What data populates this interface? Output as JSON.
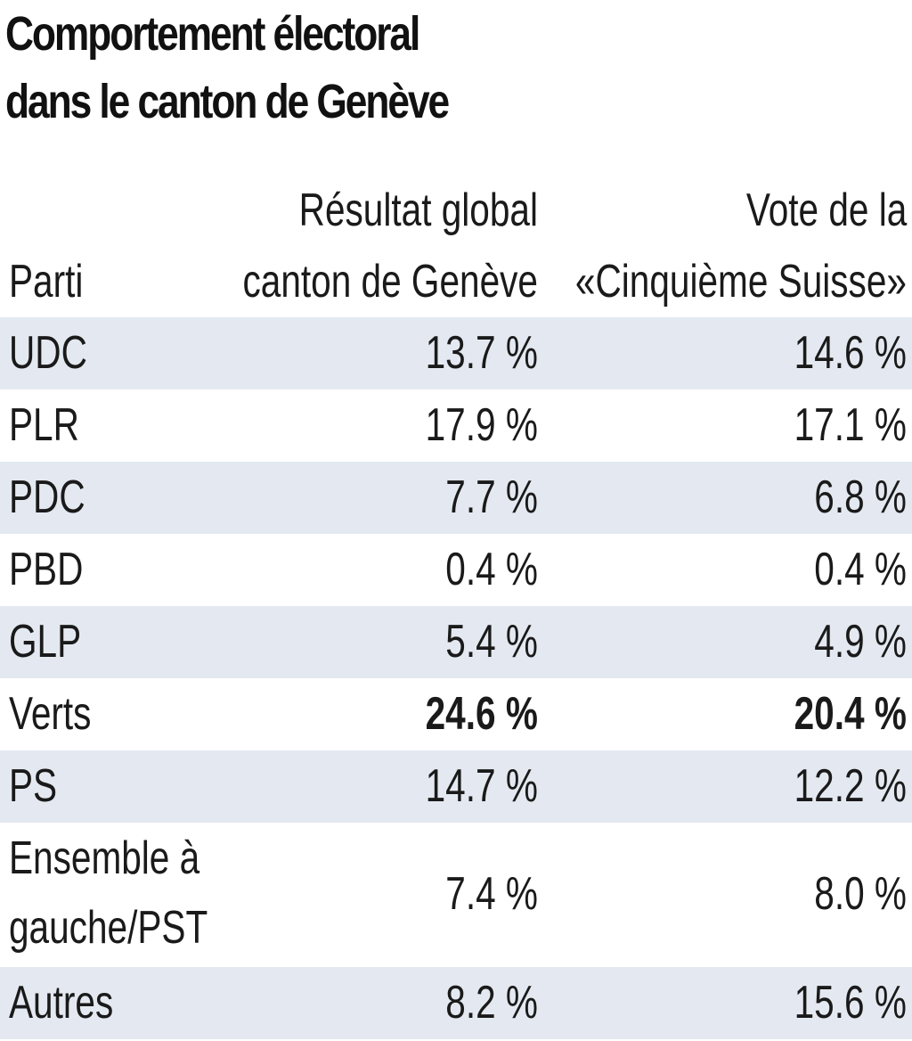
{
  "title": {
    "line1": "Comportement électoral",
    "line2": "dans le canton de Genève"
  },
  "chart_data": {
    "type": "table",
    "columns": {
      "party": "Parti",
      "geneva_line1": "Résultat global",
      "geneva_line2": "canton de Genève",
      "abroad_line1": "Vote de la",
      "abroad_line2": "«Cinquième Suisse»"
    },
    "rows": [
      {
        "party": "UDC",
        "geneva": "13.7 %",
        "abroad": "14.6 %"
      },
      {
        "party": "PLR",
        "geneva": "17.9 %",
        "abroad": "17.1 %"
      },
      {
        "party": "PDC",
        "geneva": "7.7 %",
        "abroad": "6.8 %"
      },
      {
        "party": "PBD",
        "geneva": "0.4 %",
        "abroad": "0.4 %"
      },
      {
        "party": "GLP",
        "geneva": "5.4 %",
        "abroad": "4.9 %"
      },
      {
        "party": "Verts",
        "geneva": "24.6 %",
        "abroad": "20.4 %",
        "highlight": true
      },
      {
        "party": "PS",
        "geneva": "14.7 %",
        "abroad": "12.2 %"
      },
      {
        "party_line1": "Ensemble à",
        "party_line2": "gauche/PST",
        "geneva": "7.4 %",
        "abroad": "8.0 %"
      },
      {
        "party": "Autres",
        "geneva": "8.2 %",
        "abroad": "15.6 %"
      }
    ],
    "colors": {
      "row_shade": "#e4e9f1",
      "text": "#1a1a1a"
    }
  }
}
